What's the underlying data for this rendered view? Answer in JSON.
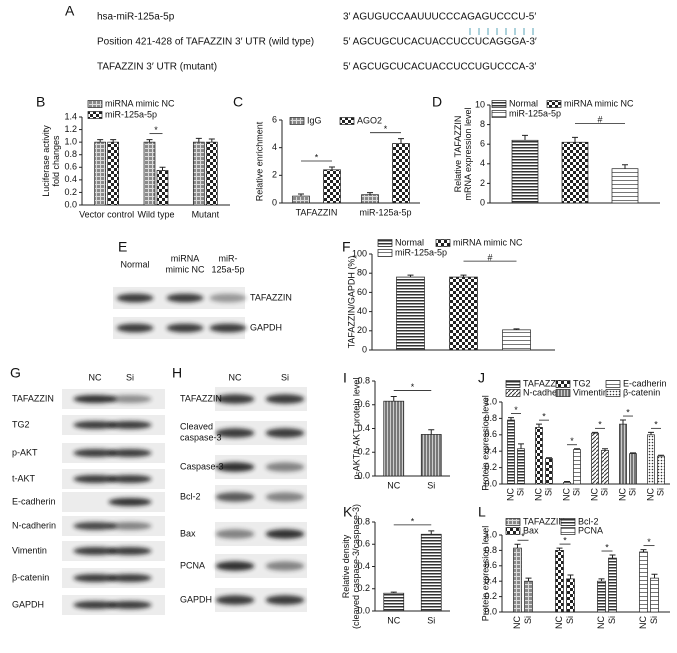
{
  "figure": {
    "panel_a": {
      "label": "A",
      "rows": [
        {
          "name": "hsa-miR-125a-5p",
          "sequence": "3′ AGUGUCCAAUUUCCCAGAGUCCCU-5′"
        },
        {
          "name": "Position 421-428 of TAFAZZIN 3′ UTR (wild type)",
          "sequence": "5′ AGCUGCUCACUACCUCCUCAGGGA-3′"
        },
        {
          "name": "TAFAZZIN 3′ UTR (mutant)",
          "sequence": "5′ AGCUGCUCACUACCUCCUGUCCCA-3′"
        }
      ]
    },
    "blots": [
      {
        "label": "E",
        "columns": [
          "Normal",
          [
            "miRNA",
            "mimic NC"
          ],
          [
            "miR-",
            "125a-5p"
          ]
        ],
        "rows": [
          "TAFAZZIN",
          "GAPDH"
        ]
      },
      {
        "label": "G",
        "columns": [
          "NC",
          "Si"
        ],
        "rows": [
          "TAFAZZIN",
          "TG2",
          "p-AKT",
          "t-AKT",
          "E-cadherin",
          "N-cadherin",
          "Vimentin",
          "β-catenin",
          "GAPDH"
        ]
      },
      {
        "label": "H",
        "columns": [
          "NC",
          "Si"
        ],
        "rows": [
          "TAFAZZIN",
          [
            "Cleaved",
            "caspase-3"
          ],
          "Caspase-3",
          "Bcl-2",
          "Bax",
          "PCNA",
          "GAPDH"
        ]
      }
    ]
  },
  "chart_data": [
    {
      "type": "bar",
      "label": "B",
      "y_label": [
        "Luciferase activity",
        "fold changes"
      ],
      "categories": [
        "Vector control",
        "Wild type",
        "Mutant"
      ],
      "series": [
        {
          "name": "miRNA mimic NC",
          "pattern": "grid",
          "values": [
            1.0,
            1.0,
            1.0
          ],
          "errors": [
            0.04,
            0.04,
            0.06
          ]
        },
        {
          "name": "miR-125a-5p",
          "pattern": "checker",
          "values": [
            1.0,
            0.55,
            1.0
          ],
          "errors": [
            0.04,
            0.05,
            0.05
          ]
        }
      ],
      "ylim": [
        0,
        1.4
      ],
      "yticks": [
        {
          "value": 0,
          "label": "0.0"
        },
        0.2,
        0.4,
        0.6,
        0.8,
        {
          "value": 1,
          "label": "1.0"
        },
        1.2,
        1.4
      ],
      "annotations": [
        "*"
      ]
    },
    {
      "type": "bar",
      "label": "C",
      "y_label": "Relative enrichment",
      "categories": [
        "TAFAZZIN",
        "miR-125a-5p"
      ],
      "series": [
        {
          "name": "IgG",
          "pattern": "grid",
          "values": [
            0.5,
            0.6
          ],
          "errors": [
            0.15,
            0.15
          ]
        },
        {
          "name": "AGO2",
          "pattern": "checker",
          "values": [
            2.4,
            4.3
          ],
          "errors": [
            0.2,
            0.35
          ]
        }
      ],
      "ylim": [
        0,
        6
      ],
      "yticks": [
        0,
        2,
        4,
        6
      ],
      "annotations": [
        "*",
        "*"
      ]
    },
    {
      "type": "bar",
      "label": "D",
      "y_label": [
        "Relative TAFAZZIN",
        "mRNA expression level"
      ],
      "series": [
        {
          "name": "Normal",
          "pattern": "hstripe",
          "values": [
            6.4
          ],
          "errors": [
            0.5
          ]
        },
        {
          "name": "miRNA mimic NC",
          "pattern": "checker",
          "values": [
            6.2
          ],
          "errors": [
            0.5
          ]
        },
        {
          "name": "miR-125a-5p",
          "pattern": "hline",
          "values": [
            3.5
          ],
          "errors": [
            0.4
          ]
        }
      ],
      "ylim": [
        0,
        10
      ],
      "yticks": [
        0,
        2,
        4,
        6,
        8,
        10
      ],
      "annotations": [
        "#"
      ]
    },
    {
      "type": "bar",
      "label": "F",
      "y_label": "TAFAZZIN/GAPDH (%)",
      "series": [
        {
          "name": "Normal",
          "pattern": "hstripe",
          "values": [
            76
          ],
          "errors": [
            2
          ]
        },
        {
          "name": "miRNA mimic NC",
          "pattern": "checker",
          "values": [
            76
          ],
          "errors": [
            2
          ]
        },
        {
          "name": "miR-125a-5p",
          "pattern": "hline",
          "values": [
            21
          ],
          "errors": [
            1
          ]
        }
      ],
      "ylim": [
        0,
        100
      ],
      "yticks": [
        0,
        20,
        40,
        60,
        80,
        100
      ],
      "annotations": [
        "#"
      ]
    },
    {
      "type": "bar",
      "label": "I",
      "y_label": "p-AKT/t-AKT protein level",
      "pattern": "vstripe",
      "categories": [
        "NC",
        "Si"
      ],
      "values": [
        0.63,
        0.35
      ],
      "errors": [
        0.04,
        0.04
      ],
      "ylim": [
        0,
        0.8
      ],
      "yticks": [
        {
          "value": 0,
          "label": "0.0"
        },
        0.2,
        0.4,
        0.6,
        0.8
      ],
      "annotations": [
        "*"
      ]
    },
    {
      "type": "paired_bar",
      "label": "J",
      "y_label": "Protein expression level",
      "categories": [
        "NC",
        "Si"
      ],
      "series": [
        {
          "name": "TAFAZZIN",
          "pattern": "hstripe",
          "values": [
            0.78,
            0.43
          ],
          "errors": [
            0.03,
            0.06
          ]
        },
        {
          "name": "TG2",
          "pattern": "checker",
          "values": [
            0.69,
            0.31
          ],
          "errors": [
            0.04,
            0.01
          ]
        },
        {
          "name": "E-cadherin",
          "pattern": "hline",
          "values": [
            0.02,
            0.42
          ],
          "errors": [
            0.01,
            0.01
          ]
        },
        {
          "name": "N-cadherin",
          "pattern": "diag",
          "values": [
            0.62,
            0.41
          ],
          "errors": [
            0.01,
            0.02
          ]
        },
        {
          "name": "Vimentin",
          "pattern": "vstripe",
          "values": [
            0.73,
            0.37
          ],
          "errors": [
            0.05,
            0.01
          ]
        },
        {
          "name": "β-catenin",
          "pattern": "dots",
          "values": [
            0.6,
            0.34
          ],
          "errors": [
            0.03,
            0.01
          ]
        }
      ],
      "ylim": [
        0,
        1.0
      ],
      "yticks": [
        {
          "value": 0,
          "label": "0.0"
        },
        0.2,
        0.4,
        0.6,
        0.8,
        {
          "value": 1,
          "label": "1.0"
        }
      ],
      "annotations": [
        "*",
        "*",
        "*",
        "*",
        "*",
        "*"
      ]
    },
    {
      "type": "bar",
      "label": "K",
      "y_label": [
        "Relative density",
        "(cleaved caspase-3/caspase-3)"
      ],
      "pattern": "hstripe",
      "categories": [
        "NC",
        "Si"
      ],
      "values": [
        0.16,
        0.69
      ],
      "errors": [
        0.01,
        0.03
      ],
      "ylim": [
        0,
        0.8
      ],
      "yticks": [
        {
          "value": 0,
          "label": "0.0"
        },
        0.2,
        0.4,
        0.6,
        0.8
      ],
      "annotations": [
        "*"
      ]
    },
    {
      "type": "paired_bar",
      "label": "L",
      "y_label": "Protein expression level",
      "categories": [
        "NC",
        "Si"
      ],
      "series": [
        {
          "name": "TAFAZZIN",
          "pattern": "grid",
          "values": [
            0.83,
            0.4
          ],
          "errors": [
            0.05,
            0.04
          ]
        },
        {
          "name": "Bax",
          "pattern": "checker",
          "values": [
            0.8,
            0.43
          ],
          "errors": [
            0.03,
            0.05
          ]
        },
        {
          "name": "Bcl-2",
          "pattern": "hstripe",
          "values": [
            0.4,
            0.7
          ],
          "errors": [
            0.03,
            0.04
          ]
        },
        {
          "name": "PCNA",
          "pattern": "hline",
          "values": [
            0.78,
            0.44
          ],
          "errors": [
            0.03,
            0.05
          ]
        }
      ],
      "ylim": [
        0,
        1.0
      ],
      "yticks": [
        {
          "value": 0,
          "label": "0.0"
        },
        0.2,
        0.4,
        0.6,
        0.8,
        {
          "value": 1,
          "label": "1.0"
        }
      ],
      "annotations": [
        "*",
        "*",
        "*",
        "*"
      ]
    }
  ]
}
